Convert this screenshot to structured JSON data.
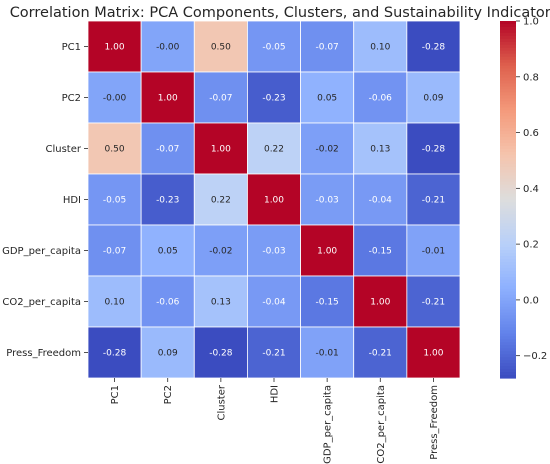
{
  "chart_data": {
    "type": "heatmap",
    "title": "Correlation Matrix: PCA Components, Clusters, and Sustainability Indicators",
    "x_labels": [
      "PC1",
      "PC2",
      "Cluster",
      "HDI",
      "GDP_per_capita",
      "CO2_per_capita",
      "Press_Freedom"
    ],
    "y_labels": [
      "PC1",
      "PC2",
      "Cluster",
      "HDI",
      "GDP_per_capita",
      "CO2_per_capita",
      "Press_Freedom"
    ],
    "values": [
      [
        1.0,
        -0.0,
        0.5,
        -0.05,
        -0.07,
        0.1,
        -0.28
      ],
      [
        -0.0,
        1.0,
        -0.07,
        -0.23,
        0.05,
        -0.06,
        0.09
      ],
      [
        0.5,
        -0.07,
        1.0,
        0.22,
        -0.02,
        0.13,
        -0.28
      ],
      [
        -0.05,
        -0.23,
        0.22,
        1.0,
        -0.03,
        -0.04,
        -0.21
      ],
      [
        -0.07,
        0.05,
        -0.02,
        -0.03,
        1.0,
        -0.15,
        -0.01
      ],
      [
        0.1,
        -0.06,
        0.13,
        -0.04,
        -0.15,
        1.0,
        -0.21
      ],
      [
        -0.28,
        0.09,
        -0.28,
        -0.21,
        -0.01,
        -0.21,
        1.0
      ]
    ],
    "value_labels": [
      [
        "1.00",
        "-0.00",
        "0.50",
        "-0.05",
        "-0.07",
        "0.10",
        "-0.28"
      ],
      [
        "-0.00",
        "1.00",
        "-0.07",
        "-0.23",
        "0.05",
        "-0.06",
        "0.09"
      ],
      [
        "0.50",
        "-0.07",
        "1.00",
        "0.22",
        "-0.02",
        "0.13",
        "-0.28"
      ],
      [
        "-0.05",
        "-0.23",
        "0.22",
        "1.00",
        "-0.03",
        "-0.04",
        "-0.21"
      ],
      [
        "-0.07",
        "0.05",
        "-0.02",
        "-0.03",
        "1.00",
        "-0.15",
        "-0.01"
      ],
      [
        "0.10",
        "-0.06",
        "0.13",
        "-0.04",
        "-0.15",
        "1.00",
        "-0.21"
      ],
      [
        "-0.28",
        "0.09",
        "-0.28",
        "-0.21",
        "-0.01",
        "-0.21",
        "1.00"
      ]
    ],
    "color_range": [
      -0.28,
      1.0
    ],
    "colormap": "coolwarm",
    "colorbar_ticks": [
      -0.2,
      0.0,
      0.2,
      0.4,
      0.6,
      0.8,
      1.0
    ],
    "colorbar_tick_labels": [
      "−0.2",
      "0.0",
      "0.2",
      "0.4",
      "0.6",
      "0.8",
      "1.0"
    ],
    "cell_border_color": "#ffffff"
  }
}
